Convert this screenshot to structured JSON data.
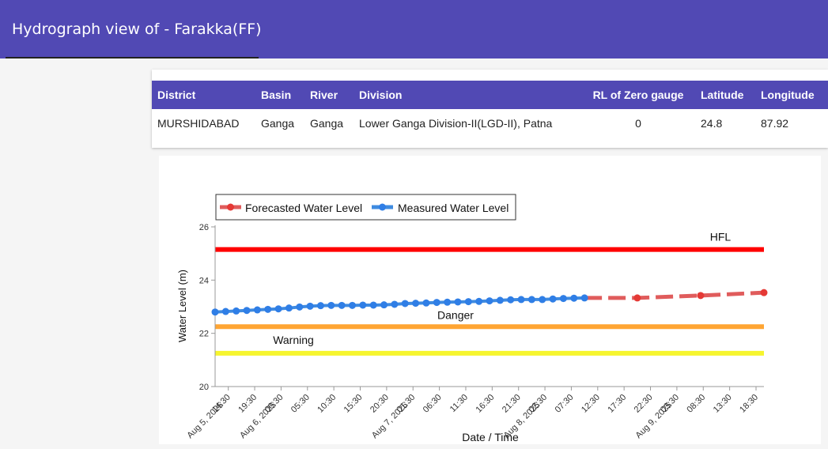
{
  "header": {
    "title": "Hydrograph view of - Farakka(FF)"
  },
  "info": {
    "columns": [
      "District",
      "Basin",
      "River",
      "Division",
      "RL of Zero gauge",
      "Latitude",
      "Longitude"
    ],
    "row": [
      "MURSHIDABAD",
      "Ganga",
      "Ganga",
      "Lower Ganga Division-II(LGD-II), Patna",
      "0",
      "24.8",
      "87.92"
    ]
  },
  "chart_data": {
    "type": "line",
    "xlabel": "Date / Time",
    "ylabel": "Water Level (m)",
    "ylim": [
      20,
      26
    ],
    "yticks": [
      20,
      22,
      24,
      26
    ],
    "legend": [
      "Forecasted Water Level",
      "Measured Water Level"
    ],
    "legend_position": "top-left",
    "colors": {
      "forecast": "#e05c5c",
      "measured": "#3f8be0",
      "hfl": "#ff0000",
      "danger": "#ffa533",
      "warning": "#f6f52e"
    },
    "xticks": [
      {
        "label": "14:30",
        "date": "Aug 5, 2025"
      },
      {
        "label": "19:30"
      },
      {
        "label": "00:30",
        "date": "Aug 6, 2025"
      },
      {
        "label": "05:30"
      },
      {
        "label": "10:30"
      },
      {
        "label": "15:30"
      },
      {
        "label": "20:30"
      },
      {
        "label": "01:30",
        "date": "Aug 7, 2025"
      },
      {
        "label": "06:30"
      },
      {
        "label": "11:30"
      },
      {
        "label": "16:30"
      },
      {
        "label": "21:30"
      },
      {
        "label": "02:30",
        "date": "Aug 8, 2025"
      },
      {
        "label": "07:30"
      },
      {
        "label": "12:30"
      },
      {
        "label": "17:30"
      },
      {
        "label": "22:30"
      },
      {
        "label": "03:30",
        "date": "Aug 9, 2025"
      },
      {
        "label": "08:30"
      },
      {
        "label": "13:30"
      },
      {
        "label": "18:30"
      }
    ],
    "reference_lines": [
      {
        "name": "HFL",
        "value": 25.15
      },
      {
        "name": "Danger",
        "value": 22.25
      },
      {
        "name": "Warning",
        "value": 21.25
      }
    ],
    "measured": {
      "name": "Measured Water Level",
      "x": [
        "2025-08-05 12:00",
        "2025-08-05 14:00",
        "2025-08-05 16:00",
        "2025-08-05 18:00",
        "2025-08-05 20:00",
        "2025-08-05 22:00",
        "2025-08-06 00:00",
        "2025-08-06 02:00",
        "2025-08-06 04:00",
        "2025-08-06 06:00",
        "2025-08-06 08:00",
        "2025-08-06 10:00",
        "2025-08-06 12:00",
        "2025-08-06 14:00",
        "2025-08-06 16:00",
        "2025-08-06 18:00",
        "2025-08-06 20:00",
        "2025-08-06 22:00",
        "2025-08-07 00:00",
        "2025-08-07 02:00",
        "2025-08-07 04:00",
        "2025-08-07 06:00",
        "2025-08-07 08:00",
        "2025-08-07 10:00",
        "2025-08-07 12:00",
        "2025-08-07 14:00",
        "2025-08-07 16:00",
        "2025-08-07 18:00",
        "2025-08-07 20:00",
        "2025-08-07 22:00",
        "2025-08-08 00:00",
        "2025-08-08 02:00",
        "2025-08-08 04:00",
        "2025-08-08 06:00",
        "2025-08-08 08:00",
        "2025-08-08 10:00"
      ],
      "y": [
        22.8,
        22.82,
        22.84,
        22.86,
        22.88,
        22.9,
        22.92,
        22.95,
        22.99,
        23.02,
        23.04,
        23.05,
        23.05,
        23.05,
        23.06,
        23.06,
        23.07,
        23.09,
        23.12,
        23.13,
        23.14,
        23.16,
        23.17,
        23.18,
        23.19,
        23.2,
        23.22,
        23.24,
        23.26,
        23.27,
        23.27,
        23.27,
        23.29,
        23.31,
        23.32,
        23.33
      ]
    },
    "forecast": {
      "name": "Forecasted Water Level",
      "x": [
        "2025-08-08 10:00",
        "2025-08-08 20:00",
        "2025-08-09 08:00",
        "2025-08-09 20:00"
      ],
      "y": [
        23.33,
        23.33,
        23.42,
        23.53
      ],
      "markers": [
        false,
        true,
        true,
        true
      ]
    }
  }
}
